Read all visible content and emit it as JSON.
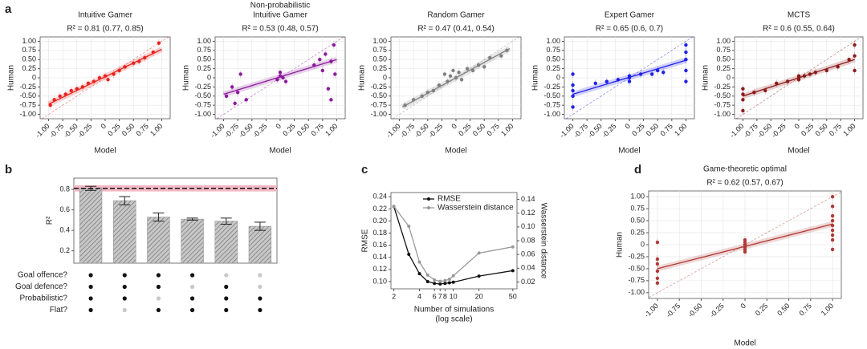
{
  "chart_data": [
    {
      "type": "scatter",
      "panel_label": "a",
      "title": [
        "Intuitive Gamer"
      ],
      "subtitle": "R² = 0.81 (0.77, 0.85)",
      "xlabel": "Model",
      "ylabel": "Human",
      "color": "#e8231f",
      "grid": true,
      "identity_line": true,
      "xlim": [
        -1.15,
        1.15
      ],
      "ylim": [
        -1.12,
        1.12
      ],
      "xticks": [
        {
          "value": -1,
          "label": "-1.00"
        },
        -0.75,
        {
          "value": -0.5,
          "label": "-0.50"
        },
        -0.25,
        0,
        0.25,
        {
          "value": 0.5,
          "label": "0.50"
        },
        0.75,
        {
          "value": 1,
          "label": "1.00"
        }
      ],
      "yticks": [
        {
          "value": -1,
          "label": "-1.00"
        },
        -0.75,
        {
          "value": -0.5,
          "label": "-0.50"
        },
        -0.25,
        0,
        0.25,
        {
          "value": 0.5,
          "label": "0.50"
        },
        0.75,
        {
          "value": 1,
          "label": "1.00"
        }
      ],
      "x": [
        -0.97,
        -0.9,
        -0.8,
        -0.7,
        -0.6,
        -0.5,
        -0.4,
        -0.3,
        -0.2,
        -0.1,
        0,
        0.05,
        0.15,
        0.25,
        0.35,
        0.5,
        0.6,
        0.7,
        0.85,
        0.95
      ],
      "values": [
        -0.75,
        -0.6,
        -0.5,
        -0.45,
        -0.35,
        -0.3,
        -0.25,
        -0.15,
        -0.1,
        0,
        0.05,
        -0.05,
        0.1,
        0.2,
        0.3,
        0.4,
        0.45,
        0.55,
        0.7,
        0.95
      ],
      "fit": {
        "x": [
          -1,
          1
        ],
        "y": [
          -0.72,
          0.78
        ]
      }
    },
    {
      "type": "scatter",
      "title": [
        "Non-probabilistic",
        "Intuitive Gamer"
      ],
      "subtitle": "R² = 0.53 (0.48, 0.57)",
      "xlabel": "Model",
      "ylabel": "Human",
      "color": "#8b1a9b",
      "grid": true,
      "identity_line": true,
      "xlim": [
        -1.15,
        1.15
      ],
      "ylim": [
        -1.12,
        1.12
      ],
      "xticks": [
        {
          "value": -1,
          "label": "-1.00"
        },
        -0.75,
        {
          "value": -0.5,
          "label": "-0.50"
        },
        -0.25,
        0,
        0.25,
        {
          "value": 0.5,
          "label": "0.50"
        },
        0.75,
        {
          "value": 1,
          "label": "1.00"
        }
      ],
      "yticks": [
        {
          "value": -1,
          "label": "-1.00"
        },
        -0.75,
        {
          "value": -0.5,
          "label": "-0.50"
        },
        -0.25,
        0,
        0.25,
        {
          "value": 0.5,
          "label": "0.50"
        },
        0.75,
        {
          "value": 1,
          "label": "1.00"
        }
      ],
      "x": [
        -0.95,
        -0.85,
        -0.8,
        -0.75,
        -0.7,
        -0.6,
        -0.05,
        0,
        0,
        0.05,
        0.1,
        0.7,
        0.75,
        0.8,
        0.85,
        0.9,
        0.95,
        0.97,
        0.6,
        0.9
      ],
      "values": [
        -0.5,
        -0.25,
        -0.7,
        -0.4,
        0.1,
        -0.6,
        -0.05,
        0.05,
        0.15,
        0,
        -0.1,
        0.5,
        0.2,
        0.65,
        -0.3,
        0.45,
        0.9,
        0.1,
        0.35,
        -0.6
      ],
      "fit": {
        "x": [
          -1,
          1
        ],
        "y": [
          -0.45,
          0.5
        ]
      }
    },
    {
      "type": "scatter",
      "title": [
        "Random Gamer"
      ],
      "subtitle": "R² = 0.47 (0.41, 0.54)",
      "xlabel": "Model",
      "ylabel": "Human",
      "color": "#808080",
      "grid": true,
      "identity_line": true,
      "xlim": [
        -1.15,
        1.15
      ],
      "ylim": [
        -1.12,
        1.12
      ],
      "xticks": [
        {
          "value": -1,
          "label": "-1.00"
        },
        -0.75,
        {
          "value": -0.5,
          "label": "-0.50"
        },
        -0.25,
        0,
        0.25,
        {
          "value": 0.5,
          "label": "0.50"
        },
        0.75,
        {
          "value": 1,
          "label": "1.00"
        }
      ],
      "yticks": [
        {
          "value": -1,
          "label": "-1.00"
        },
        -0.75,
        {
          "value": -0.5,
          "label": "-0.50"
        },
        -0.25,
        0,
        0.25,
        {
          "value": 0.5,
          "label": "0.50"
        },
        0.75,
        {
          "value": 1,
          "label": "1.00"
        }
      ],
      "x": [
        -0.9,
        -0.75,
        -0.6,
        -0.5,
        -0.4,
        -0.3,
        -0.2,
        -0.15,
        -0.1,
        -0.05,
        0,
        0.05,
        0.1,
        0.2,
        0.3,
        0.4,
        0.5,
        0.6,
        0.8,
        0.9
      ],
      "values": [
        -0.75,
        -0.6,
        -0.5,
        -0.4,
        -0.35,
        -0.2,
        0.1,
        -0.1,
        0.05,
        0.2,
        0,
        0.15,
        -0.05,
        0.25,
        0.2,
        0.35,
        0.3,
        0.55,
        0.6,
        0.75
      ],
      "fit": {
        "x": [
          -0.95,
          0.95
        ],
        "y": [
          -0.8,
          0.8
        ]
      }
    },
    {
      "type": "scatter",
      "title": [
        "Expert Gamer"
      ],
      "subtitle": "R² = 0.65 (0.6, 0.7)",
      "xlabel": "Model",
      "ylabel": "Human",
      "color": "#1f1fe6",
      "grid": true,
      "identity_line": true,
      "xlim": [
        -1.15,
        1.15
      ],
      "ylim": [
        -1.12,
        1.12
      ],
      "xticks": [
        {
          "value": -1,
          "label": "-1.00"
        },
        -0.75,
        {
          "value": -0.5,
          "label": "-0.50"
        },
        -0.25,
        0,
        0.25,
        {
          "value": 0.5,
          "label": "0.50"
        },
        0.75,
        {
          "value": 1,
          "label": "1.00"
        }
      ],
      "yticks": [
        {
          "value": -1,
          "label": "-1.00"
        },
        -0.75,
        {
          "value": -0.5,
          "label": "-0.50"
        },
        -0.25,
        0,
        0.25,
        {
          "value": 0.5,
          "label": "0.50"
        },
        0.75,
        {
          "value": 1,
          "label": "1.00"
        }
      ],
      "x": [
        -1,
        -1,
        -1,
        -1,
        -1,
        -0.6,
        -0.4,
        -0.2,
        0,
        0,
        0,
        0.2,
        0.4,
        0.5,
        0.6,
        1,
        1,
        1,
        1,
        1
      ],
      "values": [
        -0.5,
        -0.2,
        0.1,
        -0.8,
        -0.35,
        -0.15,
        -0.1,
        -0.05,
        0,
        0.05,
        -0.1,
        0.1,
        0.1,
        0.2,
        0.15,
        0.9,
        0.5,
        0.2,
        0.7,
        -0.1
      ],
      "fit": {
        "x": [
          -1,
          1
        ],
        "y": [
          -0.45,
          0.48
        ]
      }
    },
    {
      "type": "scatter",
      "title": [
        "MCTS"
      ],
      "subtitle": "R² = 0.6 (0.55, 0.64)",
      "xlabel": "Model",
      "ylabel": "Human",
      "color": "#8b1a1a",
      "grid": true,
      "identity_line": true,
      "xlim": [
        -1.15,
        1.15
      ],
      "ylim": [
        -1.12,
        1.12
      ],
      "xticks": [
        {
          "value": -1,
          "label": "-1.00"
        },
        -0.75,
        {
          "value": -0.5,
          "label": "-0.50"
        },
        -0.25,
        0,
        0.25,
        {
          "value": 0.5,
          "label": "0.50"
        },
        0.75,
        {
          "value": 1,
          "label": "1.00"
        }
      ],
      "yticks": [
        {
          "value": -1,
          "label": "-1.00"
        },
        -0.75,
        {
          "value": -0.5,
          "label": "-0.50"
        },
        -0.25,
        0,
        0.25,
        {
          "value": 0.5,
          "label": "0.50"
        },
        0.75,
        {
          "value": 1,
          "label": "1.00"
        }
      ],
      "x": [
        -1,
        -1,
        -1,
        -1,
        -0.8,
        -0.6,
        -0.4,
        -0.2,
        0,
        0,
        0,
        0.1,
        0.2,
        0.3,
        0.5,
        0.7,
        0.9,
        1,
        1,
        1
      ],
      "values": [
        -0.6,
        -0.9,
        -0.3,
        -0.45,
        -0.4,
        -0.35,
        -0.15,
        -0.1,
        0,
        0.05,
        -0.05,
        0.05,
        0.1,
        0.15,
        0.2,
        0.3,
        0.5,
        0.9,
        0.6,
        0.2
      ],
      "fit": {
        "x": [
          -1,
          1
        ],
        "y": [
          -0.5,
          0.5
        ]
      }
    },
    {
      "type": "bar",
      "panel_label": "b",
      "ylabel": "R²",
      "color": "#9a9a9a",
      "ylim": [
        0.08,
        0.91
      ],
      "yticks": [
        0.2,
        0.4,
        0.6,
        0.8
      ],
      "values": [
        0.81,
        0.69,
        0.53,
        0.51,
        0.49,
        0.44
      ],
      "errors": [
        0.02,
        0.04,
        0.04,
        0.01,
        0.03,
        0.04
      ],
      "reference": {
        "value": 0.81,
        "band": [
          0.78,
          0.84
        ]
      },
      "dot_matrix": {
        "rows": [
          "Goal offence?",
          "Goal defence?",
          "Probabilistic?",
          "Flat?"
        ],
        "values": [
          [
            true,
            true,
            true,
            true,
            false,
            false
          ],
          [
            true,
            true,
            true,
            false,
            true,
            false
          ],
          [
            true,
            true,
            false,
            true,
            true,
            true
          ],
          [
            true,
            false,
            true,
            true,
            true,
            true
          ]
        ]
      }
    },
    {
      "type": "line",
      "panel_label": "c",
      "xlabel": [
        "Number of simulations",
        "(log scale)"
      ],
      "ylabel": "RMSE",
      "y2label": "Wasserstein distance",
      "xscale": "log",
      "x": [
        2,
        3,
        4,
        5,
        6,
        7,
        8,
        9,
        10,
        20,
        50
      ],
      "xlim": [
        1.85,
        56
      ],
      "xticks": [
        2,
        4,
        6,
        7,
        8,
        10,
        20,
        50
      ],
      "ylim": [
        0.088,
        0.247
      ],
      "yticks": [
        {
          "value": 0.1,
          "label": "0.10"
        },
        0.12,
        0.14,
        0.16,
        0.18,
        {
          "value": 0.2,
          "label": "0.20"
        },
        0.22,
        0.24
      ],
      "y2lim": [
        0.01,
        0.15
      ],
      "y2ticks": [
        0.02,
        0.04,
        0.06,
        0.08,
        {
          "value": 0.1,
          "label": "0.10"
        },
        0.12,
        0.14
      ],
      "series": [
        {
          "name": "RMSE",
          "color": "#111111",
          "values": [
            0.224,
            0.145,
            0.113,
            0.1,
            0.097,
            0.096,
            0.097,
            0.098,
            0.099,
            0.109,
            0.118
          ]
        },
        {
          "name": "Wasserstein distance",
          "color": "#999999",
          "axis": "y2",
          "values": [
            0.13,
            0.101,
            0.049,
            0.03,
            0.023,
            0.021,
            0.022,
            0.024,
            0.029,
            0.062,
            0.071
          ]
        }
      ]
    },
    {
      "type": "scatter",
      "panel_label": "d",
      "title": [
        "Game-theoretic optimal"
      ],
      "subtitle": "R² = 0.62 (0.57, 0.67)",
      "xlabel": "Model",
      "ylabel": "Human",
      "color": "#b03a35",
      "grid": true,
      "identity_line": true,
      "xlim": [
        -1.1,
        1.1
      ],
      "ylim": [
        -1.12,
        1.12
      ],
      "xticks": [
        {
          "value": -1,
          "label": "-1.00"
        },
        -0.75,
        {
          "value": -0.5,
          "label": "-0.50"
        },
        -0.25,
        0,
        0.25,
        {
          "value": 0.5,
          "label": "0.50"
        },
        0.75,
        {
          "value": 1,
          "label": "1.00"
        }
      ],
      "yticks": [
        {
          "value": -1,
          "label": "-1.00"
        },
        -0.75,
        {
          "value": -0.5,
          "label": "-0.50"
        },
        -0.25,
        0,
        0.25,
        {
          "value": 0.5,
          "label": "0.50"
        },
        0.75,
        {
          "value": 1,
          "label": "1.00"
        }
      ],
      "x": [
        -1,
        -1,
        -1,
        -1,
        -1,
        -1,
        0,
        0,
        0,
        0,
        0,
        0,
        0,
        1,
        1,
        1,
        1,
        1,
        1,
        1,
        1,
        1
      ],
      "values": [
        -0.4,
        -0.55,
        -0.7,
        -0.8,
        -0.3,
        0.05,
        0.1,
        0.05,
        0,
        -0.05,
        -0.1,
        -0.15,
        0,
        1,
        0.8,
        0.6,
        0.5,
        0.4,
        0.3,
        0.2,
        0.1,
        -0.1
      ],
      "fit": {
        "x": [
          -1,
          1
        ],
        "y": [
          -0.5,
          0.43
        ]
      }
    }
  ]
}
